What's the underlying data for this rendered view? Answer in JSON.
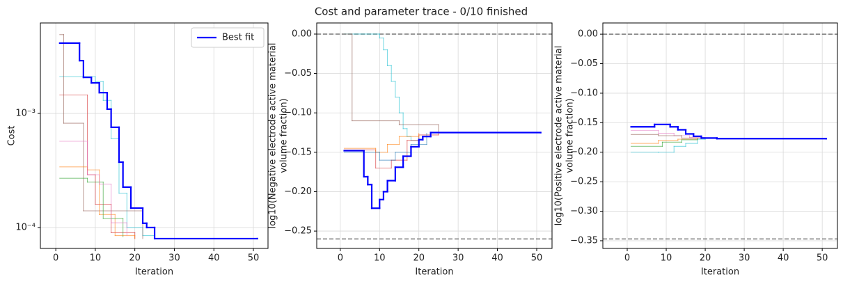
{
  "title": "Cost and parameter trace - 0/10 finished",
  "chart_data": [
    {
      "type": "line",
      "xlabel": "Iteration",
      "ylabel": [
        "Cost"
      ],
      "log_y": true,
      "grid": true,
      "legend": "upper right",
      "xlim": [
        -3.9,
        53.7
      ],
      "xticks": [
        0,
        10,
        20,
        30,
        40,
        50
      ],
      "ylim": [
        6.56e-05,
        0.0062
      ],
      "yticks": [
        {
          "value": 0.0001,
          "label": "10⁻⁴"
        },
        {
          "value": 0.001,
          "label": "10⁻³"
        }
      ],
      "series": [
        {
          "color": "#17becf",
          "x": [
            1,
            10,
            12,
            14,
            16,
            18,
            22,
            25
          ],
          "values": [
            0.0021,
            0.0019,
            0.0013,
            0.0006,
            0.0002,
            0.0001,
            8.5e-05,
            8.5e-05
          ]
        },
        {
          "color": "#8c564b",
          "x": [
            1,
            2,
            7,
            22
          ],
          "values": [
            0.0049,
            0.00082,
            0.00014,
            8e-05
          ]
        },
        {
          "color": "#d62728",
          "x": [
            1,
            8,
            10,
            14,
            20
          ],
          "values": [
            0.00145,
            0.00029,
            0.00016,
            9e-05,
            8e-05
          ]
        },
        {
          "color": "#ff7f0e",
          "x": [
            1,
            8,
            11,
            15,
            20
          ],
          "values": [
            0.00034,
            0.00032,
            0.00013,
            8.5e-05,
            8e-05
          ]
        },
        {
          "color": "#2ca02c",
          "x": [
            1,
            8,
            12,
            17
          ],
          "values": [
            0.00027,
            0.00025,
            0.00012,
            8.3e-05
          ]
        },
        {
          "color": "#e377c2",
          "x": [
            1,
            8,
            11,
            14,
            18
          ],
          "values": [
            0.00057,
            0.00029,
            0.00024,
            0.00011,
            8.5e-05
          ]
        },
        {
          "name": "Best fit",
          "color": "#0000ff",
          "x": [
            1,
            6,
            7,
            9,
            11,
            13,
            14,
            16,
            17,
            19,
            22,
            23,
            25,
            51
          ],
          "values": [
            0.00413,
            0.0029,
            0.00207,
            0.00185,
            0.00152,
            0.00109,
            0.000756,
            0.000374,
            0.000226,
            0.000148,
            0.000109,
            0.0001,
            7.99e-05,
            7.99e-05
          ]
        }
      ]
    },
    {
      "type": "line",
      "xlabel": "Iteration",
      "ylabel": [
        "log10(Negative electrode active material",
        "volume fraction)"
      ],
      "log_y": false,
      "grid": true,
      "xlim": [
        -6.0,
        53.9
      ],
      "xticks": [
        0,
        10,
        20,
        30,
        40,
        50
      ],
      "ylim": [
        -0.272,
        0.0141
      ],
      "bounds": [
        -0.26,
        0
      ],
      "yticks": [
        {
          "value": -0.25,
          "label": "−0.25"
        },
        {
          "value": -0.2,
          "label": "−0.20"
        },
        {
          "value": -0.15,
          "label": "−0.15"
        },
        {
          "value": -0.1,
          "label": "−0.10"
        },
        {
          "value": -0.05,
          "label": "−0.05"
        },
        {
          "value": 0,
          "label": "0.00"
        }
      ],
      "series": [
        {
          "color": "#17becf",
          "x": [
            1,
            10,
            11,
            12,
            13,
            14,
            15,
            16,
            17,
            18,
            20
          ],
          "values": [
            0,
            -0.005,
            -0.02,
            -0.04,
            -0.06,
            -0.08,
            -0.1,
            -0.12,
            -0.13,
            -0.135,
            -0.13
          ]
        },
        {
          "color": "#8c564b",
          "x": [
            1,
            3,
            15,
            25
          ],
          "values": [
            0,
            -0.11,
            -0.115,
            -0.125
          ]
        },
        {
          "color": "#d62728",
          "x": [
            1,
            9,
            13,
            17,
            20,
            25
          ],
          "values": [
            -0.147,
            -0.17,
            -0.16,
            -0.135,
            -0.128,
            -0.125
          ]
        },
        {
          "color": "#ff7f0e",
          "x": [
            1,
            9,
            12,
            15,
            20
          ],
          "values": [
            -0.145,
            -0.15,
            -0.14,
            -0.13,
            -0.126
          ]
        },
        {
          "color": "#1f77b4",
          "x": [
            1,
            10,
            14,
            18,
            22
          ],
          "values": [
            -0.15,
            -0.16,
            -0.15,
            -0.14,
            -0.126
          ]
        },
        {
          "color": "#0000ff",
          "x": [
            1,
            6,
            7,
            8,
            10,
            11,
            12,
            14,
            16,
            18,
            20,
            21,
            23,
            51
          ],
          "values": [
            -0.148,
            -0.181,
            -0.191,
            -0.221,
            -0.21,
            -0.2,
            -0.186,
            -0.169,
            -0.155,
            -0.143,
            -0.134,
            -0.13,
            -0.125,
            -0.125
          ],
          "best": true
        }
      ]
    },
    {
      "type": "line",
      "xlabel": "Iteration",
      "ylabel": [
        "log10(Positive electrode active material",
        "volume fraction)"
      ],
      "log_y": false,
      "grid": true,
      "xlim": [
        -6.25,
        53.9
      ],
      "xticks": [
        0,
        10,
        20,
        30,
        40,
        50
      ],
      "ylim": [
        -0.363,
        0.019
      ],
      "bounds": [
        -0.347,
        0
      ],
      "yticks": [
        {
          "value": -0.35,
          "label": "−0.35"
        },
        {
          "value": -0.3,
          "label": "−0.30"
        },
        {
          "value": -0.25,
          "label": "−0.25"
        },
        {
          "value": -0.2,
          "label": "−0.20"
        },
        {
          "value": -0.15,
          "label": "−0.15"
        },
        {
          "value": -0.1,
          "label": "−0.10"
        },
        {
          "value": -0.05,
          "label": "−0.05"
        },
        {
          "value": 0,
          "label": "0.00"
        }
      ],
      "series": [
        {
          "color": "#17becf",
          "x": [
            1,
            8,
            12,
            15,
            18,
            20
          ],
          "values": [
            -0.2,
            -0.2,
            -0.19,
            -0.185,
            -0.178,
            -0.177
          ]
        },
        {
          "color": "#e377c2",
          "x": [
            1,
            8,
            12,
            16,
            20
          ],
          "values": [
            -0.163,
            -0.168,
            -0.172,
            -0.175,
            -0.177
          ]
        },
        {
          "color": "#8c564b",
          "x": [
            1,
            8,
            14,
            19
          ],
          "values": [
            -0.17,
            -0.172,
            -0.176,
            -0.177
          ]
        },
        {
          "color": "#ff7f0e",
          "x": [
            1,
            8,
            13,
            18
          ],
          "values": [
            -0.185,
            -0.18,
            -0.178,
            -0.177
          ]
        },
        {
          "color": "#2ca02c",
          "x": [
            1,
            9,
            14,
            18
          ],
          "values": [
            -0.19,
            -0.183,
            -0.179,
            -0.177
          ]
        },
        {
          "color": "#0000ff",
          "x": [
            1,
            7,
            11,
            13,
            15,
            17,
            19,
            23,
            51
          ],
          "values": [
            -0.157,
            -0.153,
            -0.157,
            -0.162,
            -0.169,
            -0.173,
            -0.176,
            -0.177,
            -0.177
          ],
          "best": true
        }
      ]
    }
  ]
}
